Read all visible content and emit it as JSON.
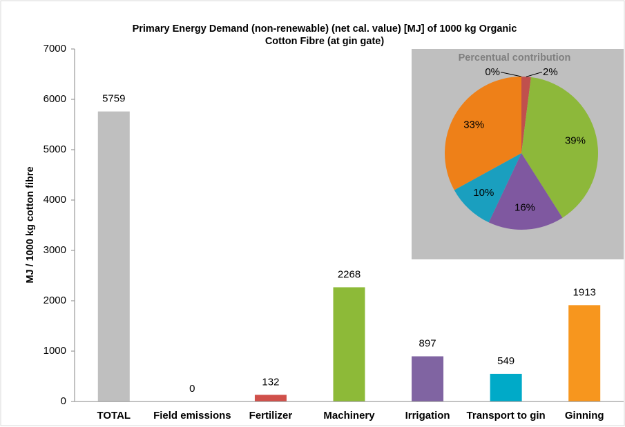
{
  "chart_data": [
    {
      "type": "bar",
      "title": "Primary Energy Demand (non-renewable) (net cal. value) [MJ] of 1000 kg Organic Cotton Fibre (at gin gate)",
      "y_label": "MJ / 1000 kg cotton fibre",
      "categories": [
        "TOTAL",
        "Field emissions",
        "Fertilizer",
        "Machinery",
        "Irrigation",
        "Transport to gin",
        "Ginning"
      ],
      "values": [
        5759,
        0,
        132,
        2268,
        897,
        549,
        1913
      ],
      "colors": [
        "#bfbfbf",
        "#bfbfbf",
        "#d0504a",
        "#8dba38",
        "#8064a2",
        "#00aac8",
        "#f7961e"
      ],
      "ylim": [
        0,
        7000
      ],
      "yticks": [
        0,
        1000,
        2000,
        3000,
        4000,
        5000,
        6000,
        7000
      ],
      "grid": false
    },
    {
      "type": "pie",
      "title": "Percentual contribution",
      "values": [
        0,
        2,
        39,
        16,
        10,
        33
      ],
      "value_labels": [
        "0%",
        "2%",
        "39%",
        "16%",
        "10%",
        "33%"
      ],
      "colors": [
        "#7f7f7f",
        "#c0504d",
        "#8db83a",
        "#7f58a0",
        "#1a9fbf",
        "#ee8018"
      ]
    }
  ]
}
